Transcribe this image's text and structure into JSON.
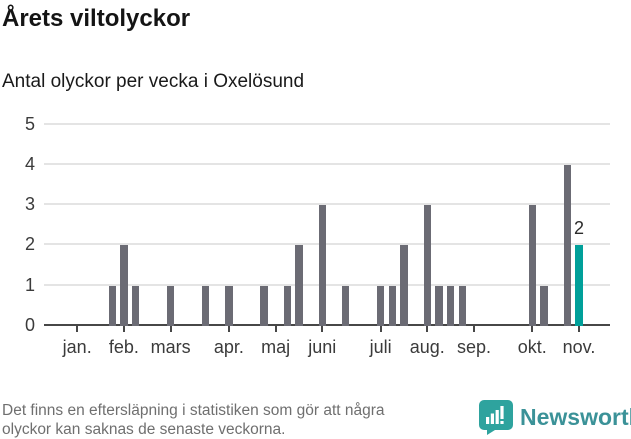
{
  "chart_data": {
    "type": "bar",
    "title": "Årets viltolyckor",
    "subtitle": "Antal olyckor per vecka i Oxelösund",
    "x_axis": "veckor, januari–november",
    "ylim": [
      0,
      5
    ],
    "yticks": [
      0,
      1,
      2,
      3,
      4,
      5
    ],
    "grid": "horizontal",
    "legend": "none",
    "months": [
      {
        "label": "jan.",
        "week": 1
      },
      {
        "label": "feb.",
        "week": 5
      },
      {
        "label": "mars",
        "week": 9
      },
      {
        "label": "apr.",
        "week": 14
      },
      {
        "label": "maj",
        "week": 18
      },
      {
        "label": "juni",
        "week": 22
      },
      {
        "label": "juli",
        "week": 27
      },
      {
        "label": "aug.",
        "week": 31
      },
      {
        "label": "sep.",
        "week": 35
      },
      {
        "label": "okt.",
        "week": 40
      },
      {
        "label": "nov.",
        "week": 44
      }
    ],
    "bars": [
      {
        "week": 4,
        "value": 1
      },
      {
        "week": 5,
        "value": 2
      },
      {
        "week": 6,
        "value": 1
      },
      {
        "week": 9,
        "value": 1
      },
      {
        "week": 12,
        "value": 1
      },
      {
        "week": 14,
        "value": 1
      },
      {
        "week": 17,
        "value": 1
      },
      {
        "week": 19,
        "value": 1
      },
      {
        "week": 20,
        "value": 2
      },
      {
        "week": 22,
        "value": 3
      },
      {
        "week": 24,
        "value": 1
      },
      {
        "week": 27,
        "value": 1
      },
      {
        "week": 28,
        "value": 1
      },
      {
        "week": 29,
        "value": 2
      },
      {
        "week": 31,
        "value": 3
      },
      {
        "week": 32,
        "value": 1
      },
      {
        "week": 33,
        "value": 1
      },
      {
        "week": 34,
        "value": 1
      },
      {
        "week": 40,
        "value": 3
      },
      {
        "week": 41,
        "value": 1
      },
      {
        "week": 43,
        "value": 4
      },
      {
        "week": 44,
        "value": 2,
        "highlight": true,
        "label": "2"
      }
    ],
    "colors": {
      "bar": "#6b6b74",
      "highlight": "#00a09a",
      "grid": "#e4e4e4",
      "axis": "#474747",
      "axis_text": "#3b3b3b"
    }
  },
  "footer": {
    "note": [
      "Det finns en eftersläpning i statistiken som gör att några",
      "olyckor kan saknas de senaste veckorna."
    ],
    "brand": "Newsworthy",
    "brand_color": "#3b9298",
    "logo_color": "#2ea39e"
  }
}
